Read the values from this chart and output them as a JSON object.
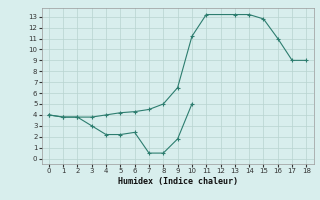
{
  "lower_x": [
    0,
    1,
    2,
    3,
    4,
    5,
    6,
    7,
    8,
    9,
    10
  ],
  "lower_y": [
    4.0,
    3.8,
    3.8,
    3.0,
    2.2,
    2.2,
    2.4,
    0.5,
    0.5,
    1.8,
    5.0
  ],
  "upper_x": [
    0,
    1,
    2,
    3,
    4,
    5,
    6,
    7,
    8,
    9,
    10,
    11,
    13,
    14,
    15,
    16,
    17,
    18
  ],
  "upper_y": [
    4.0,
    3.8,
    3.8,
    3.8,
    4.0,
    4.2,
    4.3,
    4.5,
    5.0,
    6.5,
    11.2,
    13.2,
    13.2,
    13.2,
    12.8,
    11.0,
    9.0,
    9.0
  ],
  "line_color": "#2d7d6f",
  "bg_color": "#d8eeed",
  "grid_color": "#b8d4d0",
  "xlabel": "Humidex (Indice chaleur)",
  "xlim": [
    -0.5,
    18.5
  ],
  "ylim": [
    -0.5,
    13.8
  ],
  "xticks": [
    0,
    1,
    2,
    3,
    4,
    5,
    6,
    7,
    8,
    9,
    10,
    11,
    12,
    13,
    14,
    15,
    16,
    17,
    18
  ],
  "yticks": [
    0,
    1,
    2,
    3,
    4,
    5,
    6,
    7,
    8,
    9,
    10,
    11,
    12,
    13
  ]
}
